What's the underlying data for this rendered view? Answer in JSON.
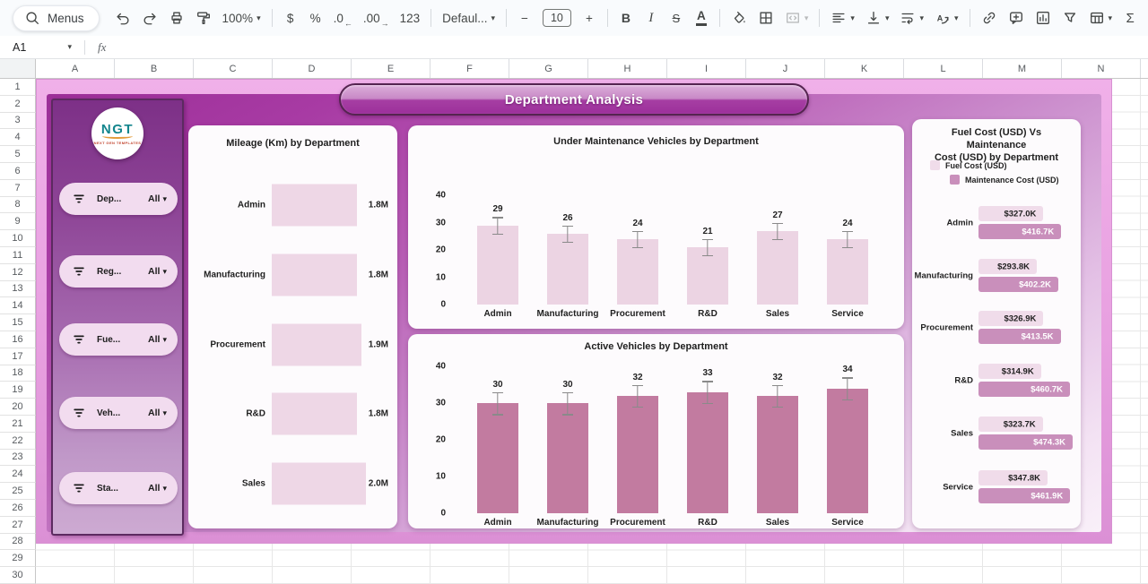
{
  "app": {
    "toolbar": {
      "menus_label": "Menus",
      "items": [
        {
          "name": "undo",
          "icon": "undo"
        },
        {
          "name": "redo",
          "icon": "redo"
        },
        {
          "name": "print",
          "icon": "print"
        },
        {
          "name": "paint-format",
          "icon": "paint"
        },
        {
          "name": "zoom",
          "label": "100%",
          "caret": true
        },
        {
          "divider": true
        },
        {
          "name": "format-currency",
          "label": "$"
        },
        {
          "name": "format-percent",
          "label": "%"
        },
        {
          "name": "decrease-decimal-places",
          "label": ".0",
          "arrow": "←"
        },
        {
          "name": "increase-decimal-places",
          "label": ".00",
          "arrow": "→"
        },
        {
          "name": "more-formats",
          "label": "123"
        },
        {
          "divider": true
        },
        {
          "name": "font-family",
          "label": "Defaul...",
          "caret": true,
          "wide": true
        },
        {
          "divider": true
        },
        {
          "name": "decrease-font-size",
          "label": "−"
        },
        {
          "name": "font-size",
          "label": "10",
          "boxed": true
        },
        {
          "name": "increase-font-size",
          "label": "+"
        },
        {
          "divider": true
        },
        {
          "name": "bold",
          "label": "B",
          "bold": true
        },
        {
          "name": "italic",
          "label": "I",
          "italic": true
        },
        {
          "name": "strikethrough",
          "label": "S",
          "strike": true
        },
        {
          "name": "text-color",
          "label": "A",
          "underline": true
        },
        {
          "divider": true
        },
        {
          "name": "fill-color",
          "icon": "fill"
        },
        {
          "name": "borders",
          "icon": "borders"
        },
        {
          "name": "merge-cells",
          "icon": "merge",
          "caret": true,
          "disabled": true
        },
        {
          "divider": true
        },
        {
          "name": "horizontal-align",
          "icon": "align",
          "caret": true
        },
        {
          "name": "vertical-align",
          "icon": "valign",
          "caret": true
        },
        {
          "name": "text-wrapping",
          "icon": "wrap",
          "caret": true
        },
        {
          "name": "text-rotation",
          "icon": "rotate",
          "caret": true
        },
        {
          "divider": true
        },
        {
          "name": "insert-link",
          "icon": "link"
        },
        {
          "name": "insert-comment",
          "icon": "comment"
        },
        {
          "name": "insert-chart",
          "icon": "chart"
        },
        {
          "name": "create-filter",
          "icon": "filter"
        },
        {
          "name": "table-views",
          "icon": "table",
          "caret": true
        },
        {
          "name": "functions",
          "label": "Σ",
          "sigma": true
        }
      ]
    },
    "name_box": "A1",
    "fx_label": "fx",
    "columns": [
      "A",
      "B",
      "C",
      "D",
      "E",
      "F",
      "G",
      "H",
      "I",
      "J",
      "K",
      "L",
      "M",
      "N"
    ],
    "row_count": 30
  },
  "dashboard": {
    "title": "Department Analysis",
    "logo": {
      "text": "NGT",
      "subtext": "NEXT GEN TEMPLATES"
    },
    "filters": [
      {
        "label": "Dep...",
        "value": "All"
      },
      {
        "label": "Reg...",
        "value": "All"
      },
      {
        "label": "Fue...",
        "value": "All"
      },
      {
        "label": "Veh...",
        "value": "All"
      },
      {
        "label": "Sta...",
        "value": "All"
      }
    ],
    "colors": {
      "frame_pink": "#e8a0e0",
      "inner_dark": "#9c2f98",
      "inner_light": "#f9f0f9",
      "light_bar": "#eed7e6",
      "dark_bar": "#c27ba0",
      "maintenance_bar": "#c98fbb"
    }
  },
  "chart_data": [
    {
      "type": "bar",
      "orientation": "horizontal",
      "title": "Mileage (Km) by Department",
      "categories": [
        "Admin",
        "Manufacturing",
        "Procurement",
        "R&D",
        "Sales"
      ],
      "values": [
        1.8,
        1.8,
        1.9,
        1.8,
        2.0
      ],
      "labels": [
        "1.8M",
        "1.8M",
        "1.9M",
        "1.8M",
        "2.0M"
      ],
      "xlim": [
        0,
        2.0
      ],
      "bar_color": "#eed7e6",
      "grid": false,
      "legend": "none"
    },
    {
      "type": "bar",
      "title": "Under Maintenance Vehicles by Department",
      "categories": [
        "Admin",
        "Manufacturing",
        "Procurement",
        "R&D",
        "Sales",
        "Service"
      ],
      "values": [
        29,
        26,
        24,
        21,
        27,
        24
      ],
      "ylim": [
        0,
        40
      ],
      "yticks": [
        0,
        10,
        20,
        30,
        40
      ],
      "error_bars": true,
      "bar_color": "#ecd4e3",
      "grid": false,
      "legend": "none"
    },
    {
      "type": "bar",
      "title": "Active Vehicles  by Department",
      "categories": [
        "Admin",
        "Manufacturing",
        "Procurement",
        "R&D",
        "Sales",
        "Service"
      ],
      "values": [
        30,
        30,
        32,
        33,
        32,
        34
      ],
      "ylim": [
        0,
        40
      ],
      "yticks": [
        0,
        10,
        20,
        30,
        40
      ],
      "error_bars": true,
      "bar_color": "#c27ba0",
      "grid": false,
      "legend": "none"
    },
    {
      "type": "bar",
      "orientation": "horizontal",
      "title": "Fuel Cost (USD) Vs Maintenance Cost (USD) by Department",
      "title_lines": [
        "Fuel Cost (USD) Vs Maintenance",
        "Cost (USD) by Department"
      ],
      "categories": [
        "Admin",
        "Manufacturing",
        "Procurement",
        "R&D",
        "Sales",
        "Service"
      ],
      "series": [
        {
          "name": "Fuel Cost (USD)",
          "color": "#f0dcea",
          "text_color": "#1f1f1f",
          "values": [
            327.0,
            293.8,
            326.9,
            314.9,
            323.7,
            347.8
          ],
          "labels": [
            "$327.0K",
            "$293.8K",
            "$326.9K",
            "$314.9K",
            "$323.7K",
            "$347.8K"
          ]
        },
        {
          "name": "Maintenance Cost (USD)",
          "color": "#c98fbb",
          "text_color": "#ffffff",
          "values": [
            416.7,
            402.2,
            413.5,
            460.7,
            474.3,
            461.9
          ],
          "labels": [
            "$416.7K",
            "$402.2K",
            "$413.5K",
            "$460.7K",
            "$474.3K",
            "$461.9K"
          ]
        }
      ],
      "xmax": 474.3,
      "legend": "top-left",
      "grid": false
    }
  ]
}
